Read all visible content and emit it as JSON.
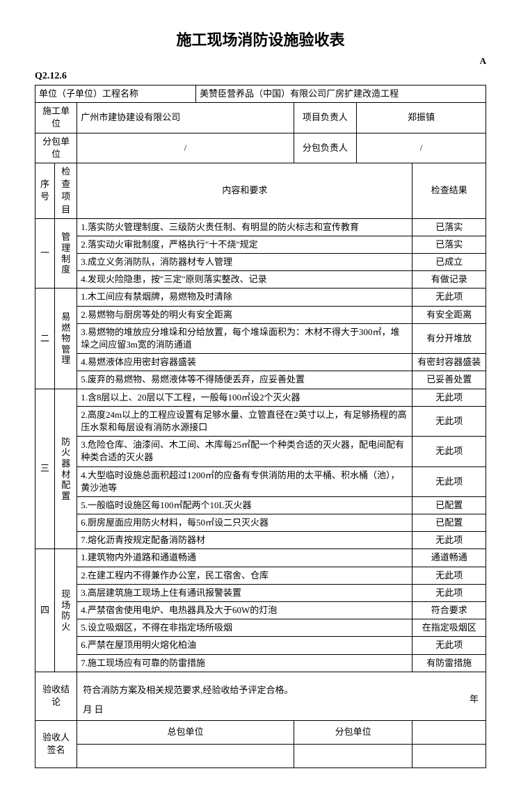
{
  "title": "施工现场消防设施验收表",
  "marker": "A",
  "form_code": "Q2.12.6",
  "header": {
    "unit_label": "单位（子单位）工程名称",
    "unit_value": "美赞臣营养品（中国）有限公司厂房扩建改造工程",
    "contractor_label": "施工单位",
    "contractor_value": "广州市建协建设有限公司",
    "pm_label": "项目负责人",
    "pm_value": "郑振镇",
    "sub_label": "分包单位",
    "sub_value": "/",
    "subpm_label": "分包负责人",
    "subpm_value": "/"
  },
  "columns": {
    "seq": "序号",
    "item": "检查项目",
    "content": "内容和要求",
    "result": "检查结果"
  },
  "sections": [
    {
      "seq": "一",
      "name": "管理制度",
      "rows": [
        {
          "content": "1.落实防火管理制度、三级防火责任制、有明显的防火标志和宣传教育",
          "result": "已落实"
        },
        {
          "content": "2.落实动火审批制度，严格执行\"十不烧\"规定",
          "result": "已落实"
        },
        {
          "content": "3.成立义务消防队，消防器材专人管理",
          "result": "已成立"
        },
        {
          "content": "4.发现火险隐患，按\"三定\"原则落实整改、记录",
          "result": "有做记录"
        }
      ]
    },
    {
      "seq": "二",
      "name": "易燃物管理",
      "rows": [
        {
          "content": "1.木工间应有禁烟牌，易燃物及时清除",
          "result": "无此项"
        },
        {
          "content": "2.易燃物与厨房等处的明火有安全距离",
          "result": "有安全距离"
        },
        {
          "content": "3.易燃物的堆放应分堆垛和分给放置，每个堆垛面积为：木材不得大于300㎡，堆垛之间应留3m宽的消防通道",
          "result": "有分开堆放"
        },
        {
          "content": "4.易燃液体应用密封容器盛装",
          "result": "有密封容器盛装"
        },
        {
          "content": "5.废弃的易燃物、易燃液体等不得随便丢弃，应妥善处置",
          "result": "已妥善处置"
        }
      ]
    },
    {
      "seq": "三",
      "name": "防火器材配置",
      "rows": [
        {
          "content": "1.含8层以上、20层以下工程，一般每100㎡设2个灭火器",
          "result": "无此项"
        },
        {
          "content": "2.高度24m以上的工程应设置有足够水量、立管直径在2英寸以上，有足够扬程的高压水泵和每层设有消防水源接口",
          "result": "无此项"
        },
        {
          "content": "3.危险仓库、油漆间、木工间、木库每25㎡配一个种类合适的灭火器，配电间配有种类合适的灭火器",
          "result": "无此项"
        },
        {
          "content": "4.大型临时设施总面积超过1200㎡的应备有专供消防用的太平桶、积水桶（池），黄沙池等",
          "result": "无此项"
        },
        {
          "content": "5.一般临时设施区每100㎡配两个10L灭火器",
          "result": "已配置"
        },
        {
          "content": "6.厨房屋面应用防火材料，每50㎡设二只灭火器",
          "result": "已配置"
        },
        {
          "content": "7.熔化沥青按规定配备消防器材",
          "result": "无此项"
        }
      ]
    },
    {
      "seq": "四",
      "name": "现场防火",
      "rows": [
        {
          "content": "1.建筑物内外道路和通道畅通",
          "result": "通道畅通"
        },
        {
          "content": "2.在建工程内不得兼作办公室，民工宿舍、仓库",
          "result": "无此项"
        },
        {
          "content": "3.高层建筑施工现场上住有通讯报警装置",
          "result": "无此项"
        },
        {
          "content": "4.严禁宿舍使用电炉、电热器具及大于60W的灯泡",
          "result": "符合要求"
        },
        {
          "content": "5.设立吸烟区，不得在非指定场所吸烟",
          "result": "在指定吸烟区"
        },
        {
          "content": "6.严禁在屋顶用明火熔化柏油",
          "result": "无此项"
        },
        {
          "content": "7.施工现场应有可靠的防雷措施",
          "result": "有防雷措施"
        }
      ]
    }
  ],
  "conclusion": {
    "label": "验收结论",
    "text": "符合消防方案及相关规范要求,经验收给予评定合格。",
    "year": "年",
    "month_day": "月  日"
  },
  "signature": {
    "label": "验收人签名",
    "general": "总包单位",
    "sub": "分包单位"
  }
}
